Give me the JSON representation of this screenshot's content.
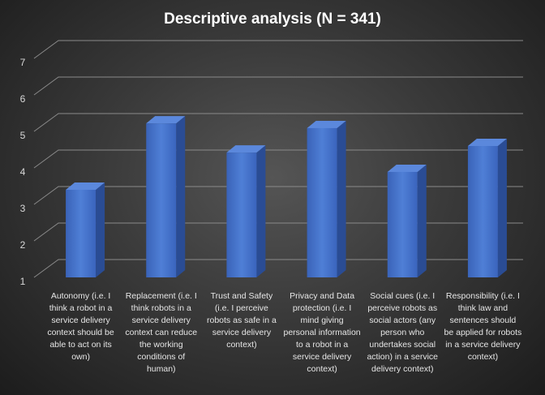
{
  "chart_data": {
    "type": "bar3d",
    "title": "Descriptive  analysis  (N = 341)",
    "categories": [
      "Autonomy (i.e. I think a robot in a service delivery context should be able to act on its own)",
      "Replacement (i.e. I think robots in a service delivery context can reduce the working conditions of human)",
      "Trust and Safety (i.e. I perceive robots as safe in a service delivery context)",
      "Privacy and Data protection (i.e. I mind giving personal information to a robot in a service delivery context)",
      "Social cues (i.e. I perceive robots as social actors (any person who undertakes social action) in a service delivery context)",
      "Responsibility (i.e. I think law and sentences should be applied for robots in a service delivery context)"
    ],
    "values": [
      3.4,
      5.22,
      4.42,
      5.09,
      3.89,
      4.6
    ],
    "color": "#4472c4",
    "ylim": [
      1,
      7
    ],
    "yticks": [
      1,
      2,
      3,
      4,
      5,
      6,
      7
    ],
    "grid": true
  }
}
